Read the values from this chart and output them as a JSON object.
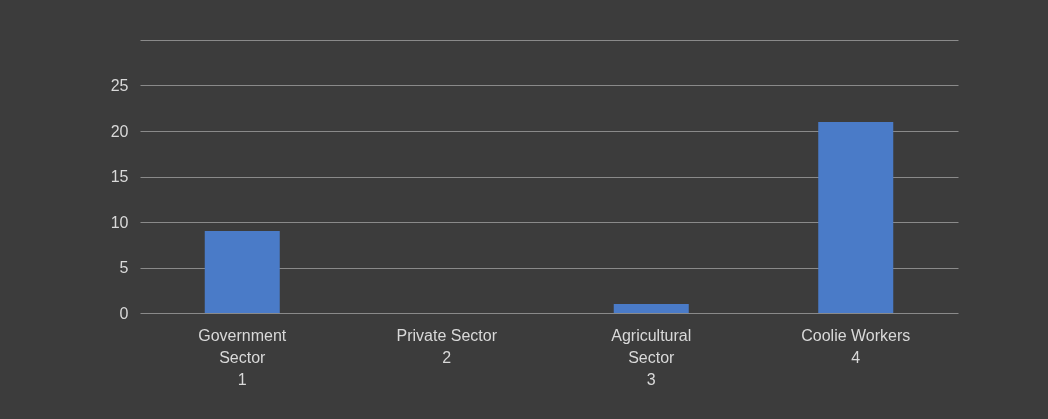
{
  "chart_data": {
    "type": "bar",
    "categories": [
      "Government Sector",
      "Private Sector",
      "Agricultural Sector",
      "Coolie Workers"
    ],
    "values": [
      9,
      0,
      1,
      21
    ],
    "color": "#4a7bc8",
    "ylim": [
      0,
      30
    ],
    "yticks": [
      0,
      5,
      10,
      15,
      20,
      25,
      {
        "value": 30,
        "label": null
      }
    ],
    "grid": "y",
    "annotations": [
      "1",
      "2",
      "3",
      "4"
    ]
  }
}
